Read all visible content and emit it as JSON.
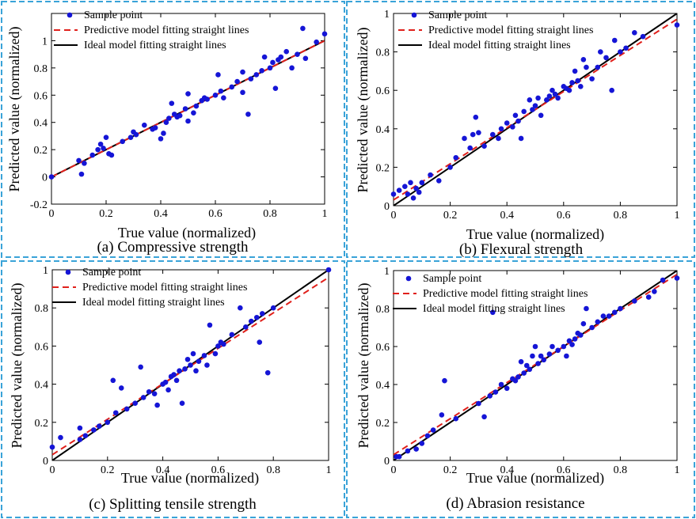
{
  "colors": {
    "points": "#1515d6",
    "predictive": "#e0201b",
    "ideal": "#000000",
    "panel_border": "#3aa3d8"
  },
  "legend": {
    "sample": "Sample point",
    "predictive": "Predictive model fitting straight lines",
    "ideal": "Ideal model fitting straight lines"
  },
  "chart_data": [
    {
      "type": "scatter",
      "caption": "(a) Compressive strength",
      "xlabel": "True value (normalized)",
      "ylabel": "Predicted value (normalized)",
      "xlim": [
        0,
        1
      ],
      "ylim": [
        -0.2,
        1.2
      ],
      "xticks": [
        0,
        0.2,
        0.4,
        0.6,
        0.8,
        1
      ],
      "yticks": [
        -0.2,
        0,
        0.2,
        0.4,
        0.6,
        0.8,
        1
      ],
      "ytick_labels": [
        "-0.2",
        "0",
        "0.2",
        "0.4",
        "0.6",
        "0.8",
        "1"
      ],
      "xtick_labels": [
        "0",
        "0.2",
        "0.4",
        "0.6",
        "0.8",
        "1"
      ],
      "predictive_line": [
        [
          0,
          0
        ],
        [
          1,
          1
        ]
      ],
      "ideal_line": [
        [
          0,
          0
        ],
        [
          1,
          1
        ]
      ],
      "points": [
        [
          0.0,
          0.0
        ],
        [
          0.1,
          0.12
        ],
        [
          0.11,
          0.02
        ],
        [
          0.12,
          0.1
        ],
        [
          0.15,
          0.16
        ],
        [
          0.17,
          0.2
        ],
        [
          0.18,
          0.24
        ],
        [
          0.19,
          0.21
        ],
        [
          0.2,
          0.29
        ],
        [
          0.21,
          0.17
        ],
        [
          0.22,
          0.16
        ],
        [
          0.26,
          0.26
        ],
        [
          0.29,
          0.29
        ],
        [
          0.3,
          0.33
        ],
        [
          0.31,
          0.31
        ],
        [
          0.34,
          0.38
        ],
        [
          0.37,
          0.35
        ],
        [
          0.38,
          0.36
        ],
        [
          0.4,
          0.28
        ],
        [
          0.41,
          0.32
        ],
        [
          0.42,
          0.4
        ],
        [
          0.43,
          0.43
        ],
        [
          0.44,
          0.54
        ],
        [
          0.45,
          0.46
        ],
        [
          0.46,
          0.44
        ],
        [
          0.47,
          0.45
        ],
        [
          0.49,
          0.5
        ],
        [
          0.5,
          0.41
        ],
        [
          0.5,
          0.61
        ],
        [
          0.52,
          0.47
        ],
        [
          0.53,
          0.52
        ],
        [
          0.55,
          0.56
        ],
        [
          0.56,
          0.58
        ],
        [
          0.57,
          0.57
        ],
        [
          0.6,
          0.6
        ],
        [
          0.61,
          0.75
        ],
        [
          0.62,
          0.63
        ],
        [
          0.63,
          0.58
        ],
        [
          0.66,
          0.66
        ],
        [
          0.68,
          0.7
        ],
        [
          0.7,
          0.62
        ],
        [
          0.7,
          0.77
        ],
        [
          0.72,
          0.46
        ],
        [
          0.73,
          0.72
        ],
        [
          0.75,
          0.75
        ],
        [
          0.77,
          0.78
        ],
        [
          0.78,
          0.88
        ],
        [
          0.8,
          0.8
        ],
        [
          0.81,
          0.84
        ],
        [
          0.82,
          0.65
        ],
        [
          0.83,
          0.86
        ],
        [
          0.84,
          0.88
        ],
        [
          0.86,
          0.92
        ],
        [
          0.88,
          0.8
        ],
        [
          0.9,
          0.9
        ],
        [
          0.92,
          1.09
        ],
        [
          0.93,
          0.87
        ],
        [
          0.97,
          0.99
        ],
        [
          1.0,
          1.05
        ]
      ]
    },
    {
      "type": "scatter",
      "caption": "(b) Flexural strength",
      "xlabel": "True value (normalized)",
      "ylabel": "Predicted value (normalized)",
      "xlim": [
        0,
        1
      ],
      "ylim": [
        0,
        1
      ],
      "xticks": [
        0,
        0.2,
        0.4,
        0.6,
        0.8,
        1
      ],
      "yticks": [
        0,
        0.2,
        0.4,
        0.6,
        0.8,
        1
      ],
      "ytick_labels": [
        "0",
        "0.2",
        "0.4",
        "0.6",
        "0.8",
        "1"
      ],
      "xtick_labels": [
        "0",
        "0.2",
        "0.4",
        "0.6",
        "0.8",
        "1"
      ],
      "predictive_line": [
        [
          0,
          0.03
        ],
        [
          1,
          0.97
        ]
      ],
      "ideal_line": [
        [
          0,
          0
        ],
        [
          1,
          1
        ]
      ],
      "points": [
        [
          0.0,
          0.06
        ],
        [
          0.02,
          0.08
        ],
        [
          0.04,
          0.1
        ],
        [
          0.05,
          0.06
        ],
        [
          0.06,
          0.12
        ],
        [
          0.07,
          0.04
        ],
        [
          0.08,
          0.09
        ],
        [
          0.09,
          0.07
        ],
        [
          0.1,
          0.12
        ],
        [
          0.13,
          0.16
        ],
        [
          0.16,
          0.13
        ],
        [
          0.2,
          0.2
        ],
        [
          0.22,
          0.25
        ],
        [
          0.25,
          0.35
        ],
        [
          0.27,
          0.3
        ],
        [
          0.28,
          0.37
        ],
        [
          0.29,
          0.46
        ],
        [
          0.3,
          0.38
        ],
        [
          0.32,
          0.31
        ],
        [
          0.35,
          0.37
        ],
        [
          0.37,
          0.35
        ],
        [
          0.38,
          0.4
        ],
        [
          0.4,
          0.43
        ],
        [
          0.42,
          0.41
        ],
        [
          0.43,
          0.47
        ],
        [
          0.44,
          0.44
        ],
        [
          0.45,
          0.35
        ],
        [
          0.46,
          0.49
        ],
        [
          0.48,
          0.55
        ],
        [
          0.49,
          0.5
        ],
        [
          0.5,
          0.52
        ],
        [
          0.51,
          0.56
        ],
        [
          0.52,
          0.47
        ],
        [
          0.54,
          0.55
        ],
        [
          0.55,
          0.57
        ],
        [
          0.56,
          0.6
        ],
        [
          0.57,
          0.58
        ],
        [
          0.58,
          0.56
        ],
        [
          0.6,
          0.62
        ],
        [
          0.61,
          0.61
        ],
        [
          0.62,
          0.6
        ],
        [
          0.63,
          0.64
        ],
        [
          0.64,
          0.7
        ],
        [
          0.65,
          0.65
        ],
        [
          0.66,
          0.62
        ],
        [
          0.67,
          0.76
        ],
        [
          0.68,
          0.72
        ],
        [
          0.7,
          0.66
        ],
        [
          0.72,
          0.72
        ],
        [
          0.73,
          0.8
        ],
        [
          0.75,
          0.77
        ],
        [
          0.77,
          0.6
        ],
        [
          0.78,
          0.86
        ],
        [
          0.8,
          0.8
        ],
        [
          0.82,
          0.82
        ],
        [
          0.85,
          0.9
        ],
        [
          0.88,
          0.88
        ],
        [
          1.0,
          0.94
        ]
      ]
    },
    {
      "type": "scatter",
      "caption": "(c) Splitting tensile strength",
      "xlabel": "True value (normalized)",
      "ylabel": "Predicted value (normalized)",
      "xlim": [
        0,
        1
      ],
      "ylim": [
        0,
        1
      ],
      "xticks": [
        0,
        0.2,
        0.4,
        0.6,
        0.8,
        1
      ],
      "yticks": [
        0,
        0.2,
        0.4,
        0.6,
        0.8,
        1
      ],
      "ytick_labels": [
        "0",
        "0.2",
        "0.4",
        "0.6",
        "0.8",
        "1"
      ],
      "xtick_labels": [
        "0",
        "0.2",
        "0.4",
        "0.6",
        "0.8",
        "1"
      ],
      "predictive_line": [
        [
          0,
          0.03
        ],
        [
          1,
          0.96
        ]
      ],
      "ideal_line": [
        [
          0,
          0
        ],
        [
          1,
          1
        ]
      ],
      "points": [
        [
          0.0,
          0.07
        ],
        [
          0.03,
          0.12
        ],
        [
          0.1,
          0.17
        ],
        [
          0.1,
          0.11
        ],
        [
          0.12,
          0.13
        ],
        [
          0.15,
          0.16
        ],
        [
          0.17,
          0.18
        ],
        [
          0.2,
          0.2
        ],
        [
          0.22,
          0.42
        ],
        [
          0.23,
          0.25
        ],
        [
          0.25,
          0.38
        ],
        [
          0.27,
          0.27
        ],
        [
          0.3,
          0.3
        ],
        [
          0.32,
          0.49
        ],
        [
          0.33,
          0.33
        ],
        [
          0.35,
          0.36
        ],
        [
          0.37,
          0.35
        ],
        [
          0.38,
          0.29
        ],
        [
          0.4,
          0.4
        ],
        [
          0.41,
          0.41
        ],
        [
          0.42,
          0.37
        ],
        [
          0.43,
          0.44
        ],
        [
          0.44,
          0.45
        ],
        [
          0.45,
          0.42
        ],
        [
          0.46,
          0.47
        ],
        [
          0.47,
          0.3
        ],
        [
          0.48,
          0.48
        ],
        [
          0.49,
          0.53
        ],
        [
          0.5,
          0.5
        ],
        [
          0.51,
          0.56
        ],
        [
          0.52,
          0.47
        ],
        [
          0.53,
          0.52
        ],
        [
          0.55,
          0.55
        ],
        [
          0.56,
          0.5
        ],
        [
          0.57,
          0.71
        ],
        [
          0.59,
          0.56
        ],
        [
          0.6,
          0.6
        ],
        [
          0.61,
          0.62
        ],
        [
          0.62,
          0.61
        ],
        [
          0.65,
          0.66
        ],
        [
          0.68,
          0.8
        ],
        [
          0.7,
          0.7
        ],
        [
          0.72,
          0.73
        ],
        [
          0.74,
          0.75
        ],
        [
          0.75,
          0.62
        ],
        [
          0.76,
          0.77
        ],
        [
          0.78,
          0.46
        ],
        [
          0.8,
          0.8
        ],
        [
          1.0,
          1.0
        ]
      ]
    },
    {
      "type": "scatter",
      "caption": "(d) Abrasion resistance",
      "xlabel": "True value (normalized)",
      "ylabel": "Predicted value (normalized)",
      "xlim": [
        0,
        1
      ],
      "ylim": [
        0,
        1
      ],
      "xticks": [
        0,
        0.2,
        0.4,
        0.6,
        0.8,
        1
      ],
      "yticks": [
        0,
        0.2,
        0.4,
        0.6,
        0.8,
        1
      ],
      "ytick_labels": [
        "0",
        "0.2",
        "0.4",
        "0.6",
        "0.8",
        "1"
      ],
      "xtick_labels": [
        "0",
        "0.2",
        "0.4",
        "0.6",
        "0.8",
        "1"
      ],
      "predictive_line": [
        [
          0,
          0.03
        ],
        [
          1,
          0.98
        ]
      ],
      "ideal_line": [
        [
          0,
          0
        ],
        [
          1,
          1
        ]
      ],
      "points": [
        [
          0.01,
          0.02
        ],
        [
          0.02,
          0.02
        ],
        [
          0.05,
          0.05
        ],
        [
          0.08,
          0.06
        ],
        [
          0.1,
          0.09
        ],
        [
          0.12,
          0.13
        ],
        [
          0.14,
          0.16
        ],
        [
          0.17,
          0.24
        ],
        [
          0.18,
          0.42
        ],
        [
          0.22,
          0.22
        ],
        [
          0.3,
          0.3
        ],
        [
          0.32,
          0.23
        ],
        [
          0.34,
          0.34
        ],
        [
          0.35,
          0.78
        ],
        [
          0.36,
          0.36
        ],
        [
          0.38,
          0.4
        ],
        [
          0.4,
          0.38
        ],
        [
          0.42,
          0.43
        ],
        [
          0.43,
          0.42
        ],
        [
          0.44,
          0.44
        ],
        [
          0.45,
          0.52
        ],
        [
          0.46,
          0.46
        ],
        [
          0.47,
          0.5
        ],
        [
          0.48,
          0.48
        ],
        [
          0.49,
          0.55
        ],
        [
          0.5,
          0.6
        ],
        [
          0.51,
          0.51
        ],
        [
          0.52,
          0.55
        ],
        [
          0.53,
          0.53
        ],
        [
          0.55,
          0.56
        ],
        [
          0.56,
          0.6
        ],
        [
          0.58,
          0.58
        ],
        [
          0.6,
          0.6
        ],
        [
          0.61,
          0.55
        ],
        [
          0.62,
          0.63
        ],
        [
          0.63,
          0.61
        ],
        [
          0.64,
          0.64
        ],
        [
          0.65,
          0.67
        ],
        [
          0.66,
          0.66
        ],
        [
          0.67,
          0.72
        ],
        [
          0.68,
          0.8
        ],
        [
          0.7,
          0.7
        ],
        [
          0.72,
          0.73
        ],
        [
          0.74,
          0.76
        ],
        [
          0.76,
          0.76
        ],
        [
          0.78,
          0.78
        ],
        [
          0.8,
          0.8
        ],
        [
          0.85,
          0.84
        ],
        [
          0.9,
          0.86
        ],
        [
          0.92,
          0.89
        ],
        [
          0.95,
          0.95
        ],
        [
          1.0,
          0.96
        ]
      ]
    }
  ]
}
